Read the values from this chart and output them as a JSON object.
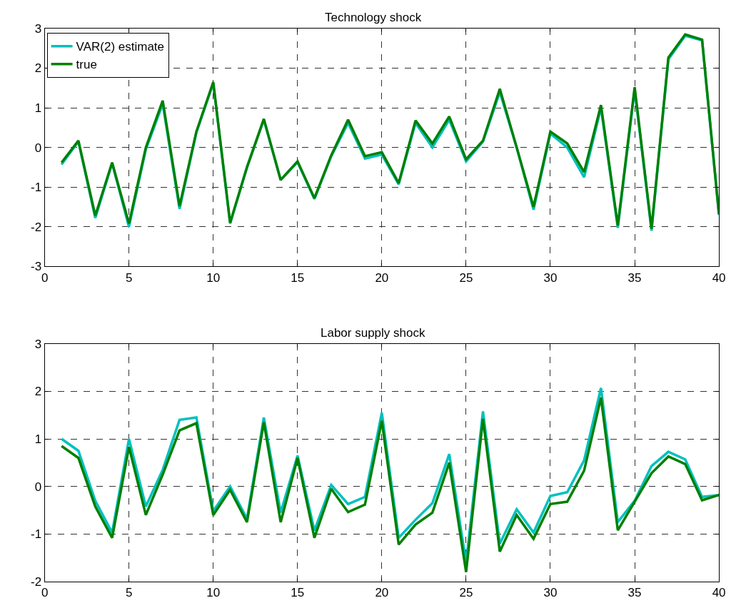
{
  "chart_data": [
    {
      "type": "line",
      "title": "Technology shock",
      "x": [
        1,
        2,
        3,
        4,
        5,
        6,
        7,
        8,
        9,
        10,
        11,
        12,
        13,
        14,
        15,
        16,
        17,
        18,
        19,
        20,
        21,
        22,
        23,
        24,
        25,
        26,
        27,
        28,
        29,
        30,
        31,
        32,
        33,
        34,
        35,
        36,
        37,
        38,
        39,
        40
      ],
      "series": [
        {
          "name": "VAR(2) estimate",
          "color": "#00c0c0",
          "values": [
            -0.43,
            0.15,
            -1.78,
            -0.4,
            -2.0,
            -0.05,
            1.1,
            -1.55,
            0.38,
            1.62,
            -1.92,
            -0.5,
            0.7,
            -0.82,
            -0.37,
            -1.3,
            -0.22,
            0.62,
            -0.28,
            -0.18,
            -0.93,
            0.62,
            0.0,
            0.7,
            -0.35,
            0.15,
            1.4,
            0.0,
            -1.57,
            0.35,
            0.0,
            -0.75,
            1.0,
            -2.03,
            1.45,
            -2.1,
            2.22,
            2.82,
            2.7,
            -1.7
          ]
        },
        {
          "name": "true",
          "color": "#008000",
          "values": [
            -0.38,
            0.17,
            -1.72,
            -0.38,
            -1.92,
            0.0,
            1.18,
            -1.48,
            0.4,
            1.65,
            -1.9,
            -0.5,
            0.72,
            -0.82,
            -0.35,
            -1.28,
            -0.2,
            0.7,
            -0.22,
            -0.12,
            -0.9,
            0.68,
            0.1,
            0.78,
            -0.3,
            0.17,
            1.48,
            0.0,
            -1.5,
            0.4,
            0.1,
            -0.62,
            1.07,
            -1.97,
            1.52,
            -2.05,
            2.27,
            2.85,
            2.72,
            -1.68
          ]
        }
      ],
      "xlim": [
        0,
        40
      ],
      "xticks": [
        0,
        5,
        10,
        15,
        20,
        25,
        30,
        35,
        40
      ],
      "ylim": [
        -3,
        3
      ],
      "yticks": [
        -3,
        -2,
        -1,
        0,
        1,
        2,
        3
      ],
      "grid": true,
      "legend": "top left",
      "line_style": "solid",
      "marker": "none"
    },
    {
      "type": "line",
      "title": "Labor supply shock",
      "x": [
        1,
        2,
        3,
        4,
        5,
        6,
        7,
        8,
        9,
        10,
        11,
        12,
        13,
        14,
        15,
        16,
        17,
        18,
        19,
        20,
        21,
        22,
        23,
        24,
        25,
        26,
        27,
        28,
        29,
        30,
        31,
        32,
        33,
        34,
        35,
        36,
        37,
        38,
        39,
        40
      ],
      "series": [
        {
          "color": "#00c0c0",
          "values": [
            1.0,
            0.75,
            -0.3,
            -0.97,
            1.0,
            -0.42,
            0.35,
            1.4,
            1.45,
            -0.52,
            0.0,
            -0.68,
            1.45,
            -0.55,
            0.65,
            -0.93,
            0.03,
            -0.37,
            -0.22,
            1.55,
            -1.08,
            -0.7,
            -0.35,
            0.68,
            -1.6,
            1.58,
            -1.2,
            -0.48,
            -0.97,
            -0.2,
            -0.12,
            0.55,
            2.07,
            -0.75,
            -0.3,
            0.43,
            0.73,
            0.57,
            -0.22,
            -0.18
          ]
        },
        {
          "color": "#008000",
          "values": [
            0.85,
            0.6,
            -0.42,
            -1.08,
            0.83,
            -0.6,
            0.25,
            1.18,
            1.33,
            -0.6,
            -0.07,
            -0.75,
            1.35,
            -0.75,
            0.6,
            -1.08,
            -0.05,
            -0.54,
            -0.38,
            1.38,
            -1.22,
            -0.8,
            -0.55,
            0.5,
            -1.8,
            1.42,
            -1.37,
            -0.6,
            -1.1,
            -0.37,
            -0.32,
            0.33,
            1.87,
            -0.92,
            -0.32,
            0.28,
            0.63,
            0.47,
            -0.29,
            -0.18
          ]
        }
      ],
      "xlim": [
        0,
        40
      ],
      "xticks": [
        0,
        5,
        10,
        15,
        20,
        25,
        30,
        35,
        40
      ],
      "ylim": [
        -2,
        3
      ],
      "yticks": [
        -2,
        -1,
        0,
        1,
        2,
        3
      ],
      "grid": true,
      "legend": false,
      "line_style": "solid",
      "marker": "none"
    }
  ]
}
